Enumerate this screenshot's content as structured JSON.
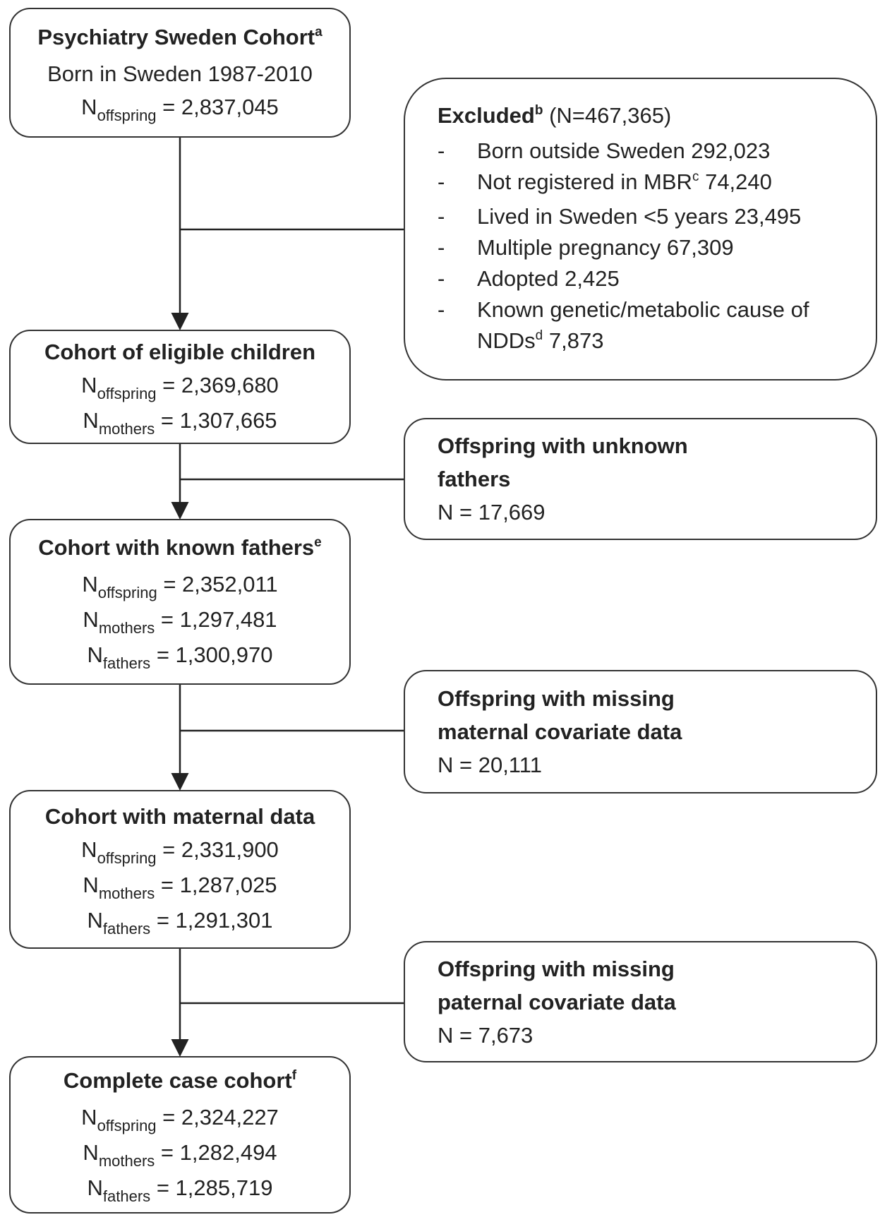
{
  "nodes": [
    {
      "title": "Psychiatry Sweden Cohort",
      "note": "a",
      "lines": [
        {
          "text": "Born in Sweden 1987-2010"
        },
        {
          "n": "N",
          "sub": "offspring",
          "value": "= 2,837,045"
        }
      ]
    },
    {
      "title": "Cohort of eligible children",
      "lines": [
        {
          "n": "N",
          "sub": "offspring",
          "value": "= 2,369,680"
        },
        {
          "n": "N",
          "sub": "mothers",
          "value": "= 1,307,665"
        }
      ]
    },
    {
      "title": "Cohort with known fathers",
      "note": "e",
      "lines": [
        {
          "n": "N",
          "sub": "offspring",
          "value": "= 2,352,011"
        },
        {
          "n": "N",
          "sub": "mothers",
          "value": "= 1,297,481"
        },
        {
          "n": "N",
          "sub": "fathers",
          "value": "= 1,300,970"
        }
      ]
    },
    {
      "title": "Cohort with maternal data",
      "lines": [
        {
          "n": "N",
          "sub": "offspring",
          "value": "= 2,331,900"
        },
        {
          "n": "N",
          "sub": "mothers",
          "value": "= 1,287,025"
        },
        {
          "n": "N",
          "sub": "fathers",
          "value": "= 1,291,301"
        }
      ]
    },
    {
      "title": "Complete case cohort",
      "note": "f",
      "lines": [
        {
          "n": "N",
          "sub": "offspring",
          "value": "= 2,324,227"
        },
        {
          "n": "N",
          "sub": "mothers",
          "value": "= 1,282,494"
        },
        {
          "n": "N",
          "sub": "fathers",
          "value": "= 1,285,719"
        }
      ]
    }
  ],
  "exclusions": [
    {
      "title_lines": [
        "Excluded"
      ],
      "note": "b",
      "title_rest": "(N=467,365)",
      "bullet": "-",
      "items": [
        {
          "text": "Born outside Sweden 292,023"
        },
        {
          "text": "Not registered in MBR",
          "sup": "c",
          "rest": "74,240"
        },
        {
          "text": "Lived in Sweden <5 years 23,495"
        },
        {
          "text": "Multiple pregnancy 67,309"
        },
        {
          "text": "Adopted 2,425"
        },
        {
          "text": "Known genetic/metabolic cause of NDDs",
          "sup": "d",
          "rest": "7,873"
        }
      ]
    },
    {
      "title_lines": [
        "Offspring with unknown",
        "fathers"
      ],
      "count": "N = 17,669"
    },
    {
      "title_lines": [
        "Offspring with missing",
        "maternal covariate data"
      ],
      "count": "N = 20,111"
    },
    {
      "title_lines": [
        "Offspring with missing",
        "paternal covariate data"
      ],
      "count": "N = 7,673"
    }
  ]
}
